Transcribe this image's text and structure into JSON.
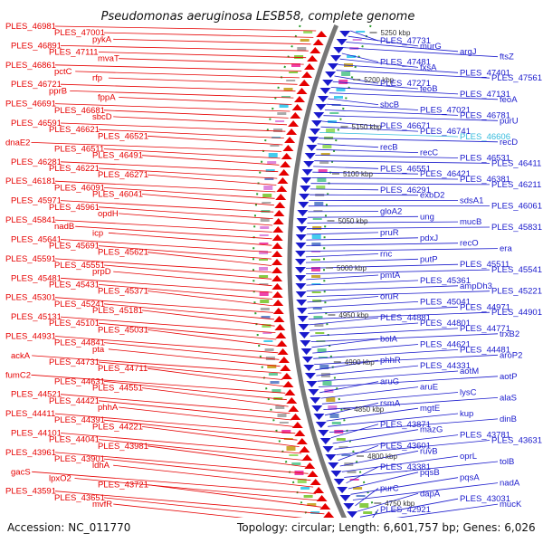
{
  "title": "Pseudomonas aeruginosa LESB58, complete genome",
  "footer": {
    "accession": "Accession: NC_011770",
    "summary": "Topology: circular; Length: 6,601,757 bp; Genes: 6,026"
  },
  "colors": {
    "left_strand": "#e60000",
    "right_strand": "#1a1acc",
    "highlight": "#33bbdd",
    "backbone": "#777777",
    "tick_mark": "#2a9a2a"
  },
  "ticks": [
    "5250 kbp",
    "5200 kbp",
    "5150 kbp",
    "5100 kbp",
    "5050 kbp",
    "5000 kbp",
    "4950 kbp",
    "4900 kbp",
    "4850 kbp",
    "4800 kbp",
    "4750 kbp"
  ],
  "left_labels": [
    {
      "text": "PLES_46981"
    },
    {
      "text": "PLES_47001"
    },
    {
      "text": "pykA"
    },
    {
      "text": "PLES_46891"
    },
    {
      "text": "PLES_47111"
    },
    {
      "text": "mvaT"
    },
    {
      "text": "PLES_46861"
    },
    {
      "text": "pctC"
    },
    {
      "text": "rfp"
    },
    {
      "text": "PLES_46721"
    },
    {
      "text": "pprB"
    },
    {
      "text": "fppA"
    },
    {
      "text": "PLES_46691"
    },
    {
      "text": "PLES_46681"
    },
    {
      "text": "sbcD"
    },
    {
      "text": "PLES_46591"
    },
    {
      "text": "PLES_46621"
    },
    {
      "text": "PLES_46521"
    },
    {
      "text": "dnaE2"
    },
    {
      "text": "PLES_46511"
    },
    {
      "text": "PLES_46491"
    },
    {
      "text": "PLES_46281"
    },
    {
      "text": "PLES_46221"
    },
    {
      "text": "PLES_46271"
    },
    {
      "text": "PLES_46181"
    },
    {
      "text": "PLES_46091"
    },
    {
      "text": "PLES_46041"
    },
    {
      "text": "PLES_45971"
    },
    {
      "text": "PLES_45961"
    },
    {
      "text": "opdH"
    },
    {
      "text": "PLES_45841"
    },
    {
      "text": "nadB"
    },
    {
      "text": "icp"
    },
    {
      "text": "PLES_45641"
    },
    {
      "text": "PLES_45691"
    },
    {
      "text": "PLES_45621"
    },
    {
      "text": "PLES_45591"
    },
    {
      "text": "PLES_45551"
    },
    {
      "text": "prpD"
    },
    {
      "text": "PLES_45481"
    },
    {
      "text": "PLES_45431"
    },
    {
      "text": "PLES_45371"
    },
    {
      "text": "PLES_45301"
    },
    {
      "text": "PLES_45241"
    },
    {
      "text": "PLES_45181"
    },
    {
      "text": "PLES_45131"
    },
    {
      "text": "PLES_45101"
    },
    {
      "text": "PLES_45031"
    },
    {
      "text": "PLES_44931"
    },
    {
      "text": "PLES_44841"
    },
    {
      "text": "pta"
    },
    {
      "text": "ackA"
    },
    {
      "text": "PLES_44731"
    },
    {
      "text": "PLES_44711"
    },
    {
      "text": "fumC2"
    },
    {
      "text": "PLES_44631"
    },
    {
      "text": "PLES_44551"
    },
    {
      "text": "PLES_44521"
    },
    {
      "text": "PLES_44421"
    },
    {
      "text": "phhA"
    },
    {
      "text": "PLES_44411"
    },
    {
      "text": "PLES_44391"
    },
    {
      "text": "PLES_44221"
    },
    {
      "text": "PLES_44101"
    },
    {
      "text": "PLES_44041"
    },
    {
      "text": "PLES_43981"
    },
    {
      "text": "PLES_43961"
    },
    {
      "text": "PLES_43901"
    },
    {
      "text": "ldhA"
    },
    {
      "text": "gacS"
    },
    {
      "text": "lpxO2"
    },
    {
      "text": "PLES_43721"
    },
    {
      "text": "PLES_43591"
    },
    {
      "text": "PLES_43651"
    },
    {
      "text": "mvfR"
    }
  ],
  "right_labels": [
    {
      "text": "PLES_47731"
    },
    {
      "text": "murG"
    },
    {
      "text": "argJ"
    },
    {
      "text": "ftsZ"
    },
    {
      "text": "PLES_47481"
    },
    {
      "text": "fxsA"
    },
    {
      "text": "PLES_47401"
    },
    {
      "text": "PLES_47561"
    },
    {
      "text": "PLES_47271"
    },
    {
      "text": "feoB"
    },
    {
      "text": "PLES_47131"
    },
    {
      "text": "feoA"
    },
    {
      "text": "sbcB"
    },
    {
      "text": "PLES_47021"
    },
    {
      "text": "PLES_46781"
    },
    {
      "text": "purU"
    },
    {
      "text": "PLES_46671"
    },
    {
      "text": "PLES_46741"
    },
    {
      "text": "PLES_46606"
    },
    {
      "text": "recD"
    },
    {
      "text": "recB"
    },
    {
      "text": "recC"
    },
    {
      "text": "PLES_46531"
    },
    {
      "text": "PLES_46411"
    },
    {
      "text": "PLES_46551"
    },
    {
      "text": "PLES_46421"
    },
    {
      "text": "PLES_46381"
    },
    {
      "text": "PLES_46211"
    },
    {
      "text": "PLES_46291"
    },
    {
      "text": "exbD2"
    },
    {
      "text": "sdsA1"
    },
    {
      "text": "PLES_46061"
    },
    {
      "text": "gloA2"
    },
    {
      "text": "ung"
    },
    {
      "text": "mucB"
    },
    {
      "text": "PLES_45831"
    },
    {
      "text": "pruR"
    },
    {
      "text": "pdxJ"
    },
    {
      "text": "recO"
    },
    {
      "text": "era"
    },
    {
      "text": "rnc"
    },
    {
      "text": "putP"
    },
    {
      "text": "PLES_45511"
    },
    {
      "text": "PLES_45541"
    },
    {
      "text": "pmtA"
    },
    {
      "text": "PLES_45361"
    },
    {
      "text": "ampDh3"
    },
    {
      "text": "PLES_45221"
    },
    {
      "text": "oruR"
    },
    {
      "text": "PLES_45041"
    },
    {
      "text": "PLES_44971"
    },
    {
      "text": "PLES_44901"
    },
    {
      "text": "PLES_44881"
    },
    {
      "text": "PLES_44801"
    },
    {
      "text": "PLES_44771"
    },
    {
      "text": "trxB2"
    },
    {
      "text": "bolA"
    },
    {
      "text": "PLES_44621"
    },
    {
      "text": "PLES_44481"
    },
    {
      "text": "aroP2"
    },
    {
      "text": "phhR"
    },
    {
      "text": "PLES_44331"
    },
    {
      "text": "aotM"
    },
    {
      "text": "aotP"
    },
    {
      "text": "aruG"
    },
    {
      "text": "aruE"
    },
    {
      "text": "lysC"
    },
    {
      "text": "alaS"
    },
    {
      "text": "rsmA"
    },
    {
      "text": "mgtE"
    },
    {
      "text": "kup"
    },
    {
      "text": "dinB"
    },
    {
      "text": "PLES_43871"
    },
    {
      "text": "mazG"
    },
    {
      "text": "PLES_43781"
    },
    {
      "text": "PLES_43631"
    },
    {
      "text": "PLES_43601"
    },
    {
      "text": "ruvB"
    },
    {
      "text": "oprL"
    },
    {
      "text": "tolB"
    },
    {
      "text": "PLES_43381"
    },
    {
      "text": "pqsB"
    },
    {
      "text": "pqsA"
    },
    {
      "text": "nadA"
    },
    {
      "text": "purC"
    },
    {
      "text": "dapA"
    },
    {
      "text": "PLES_43031"
    },
    {
      "text": "mucK"
    },
    {
      "text": "PLES_42921"
    }
  ]
}
